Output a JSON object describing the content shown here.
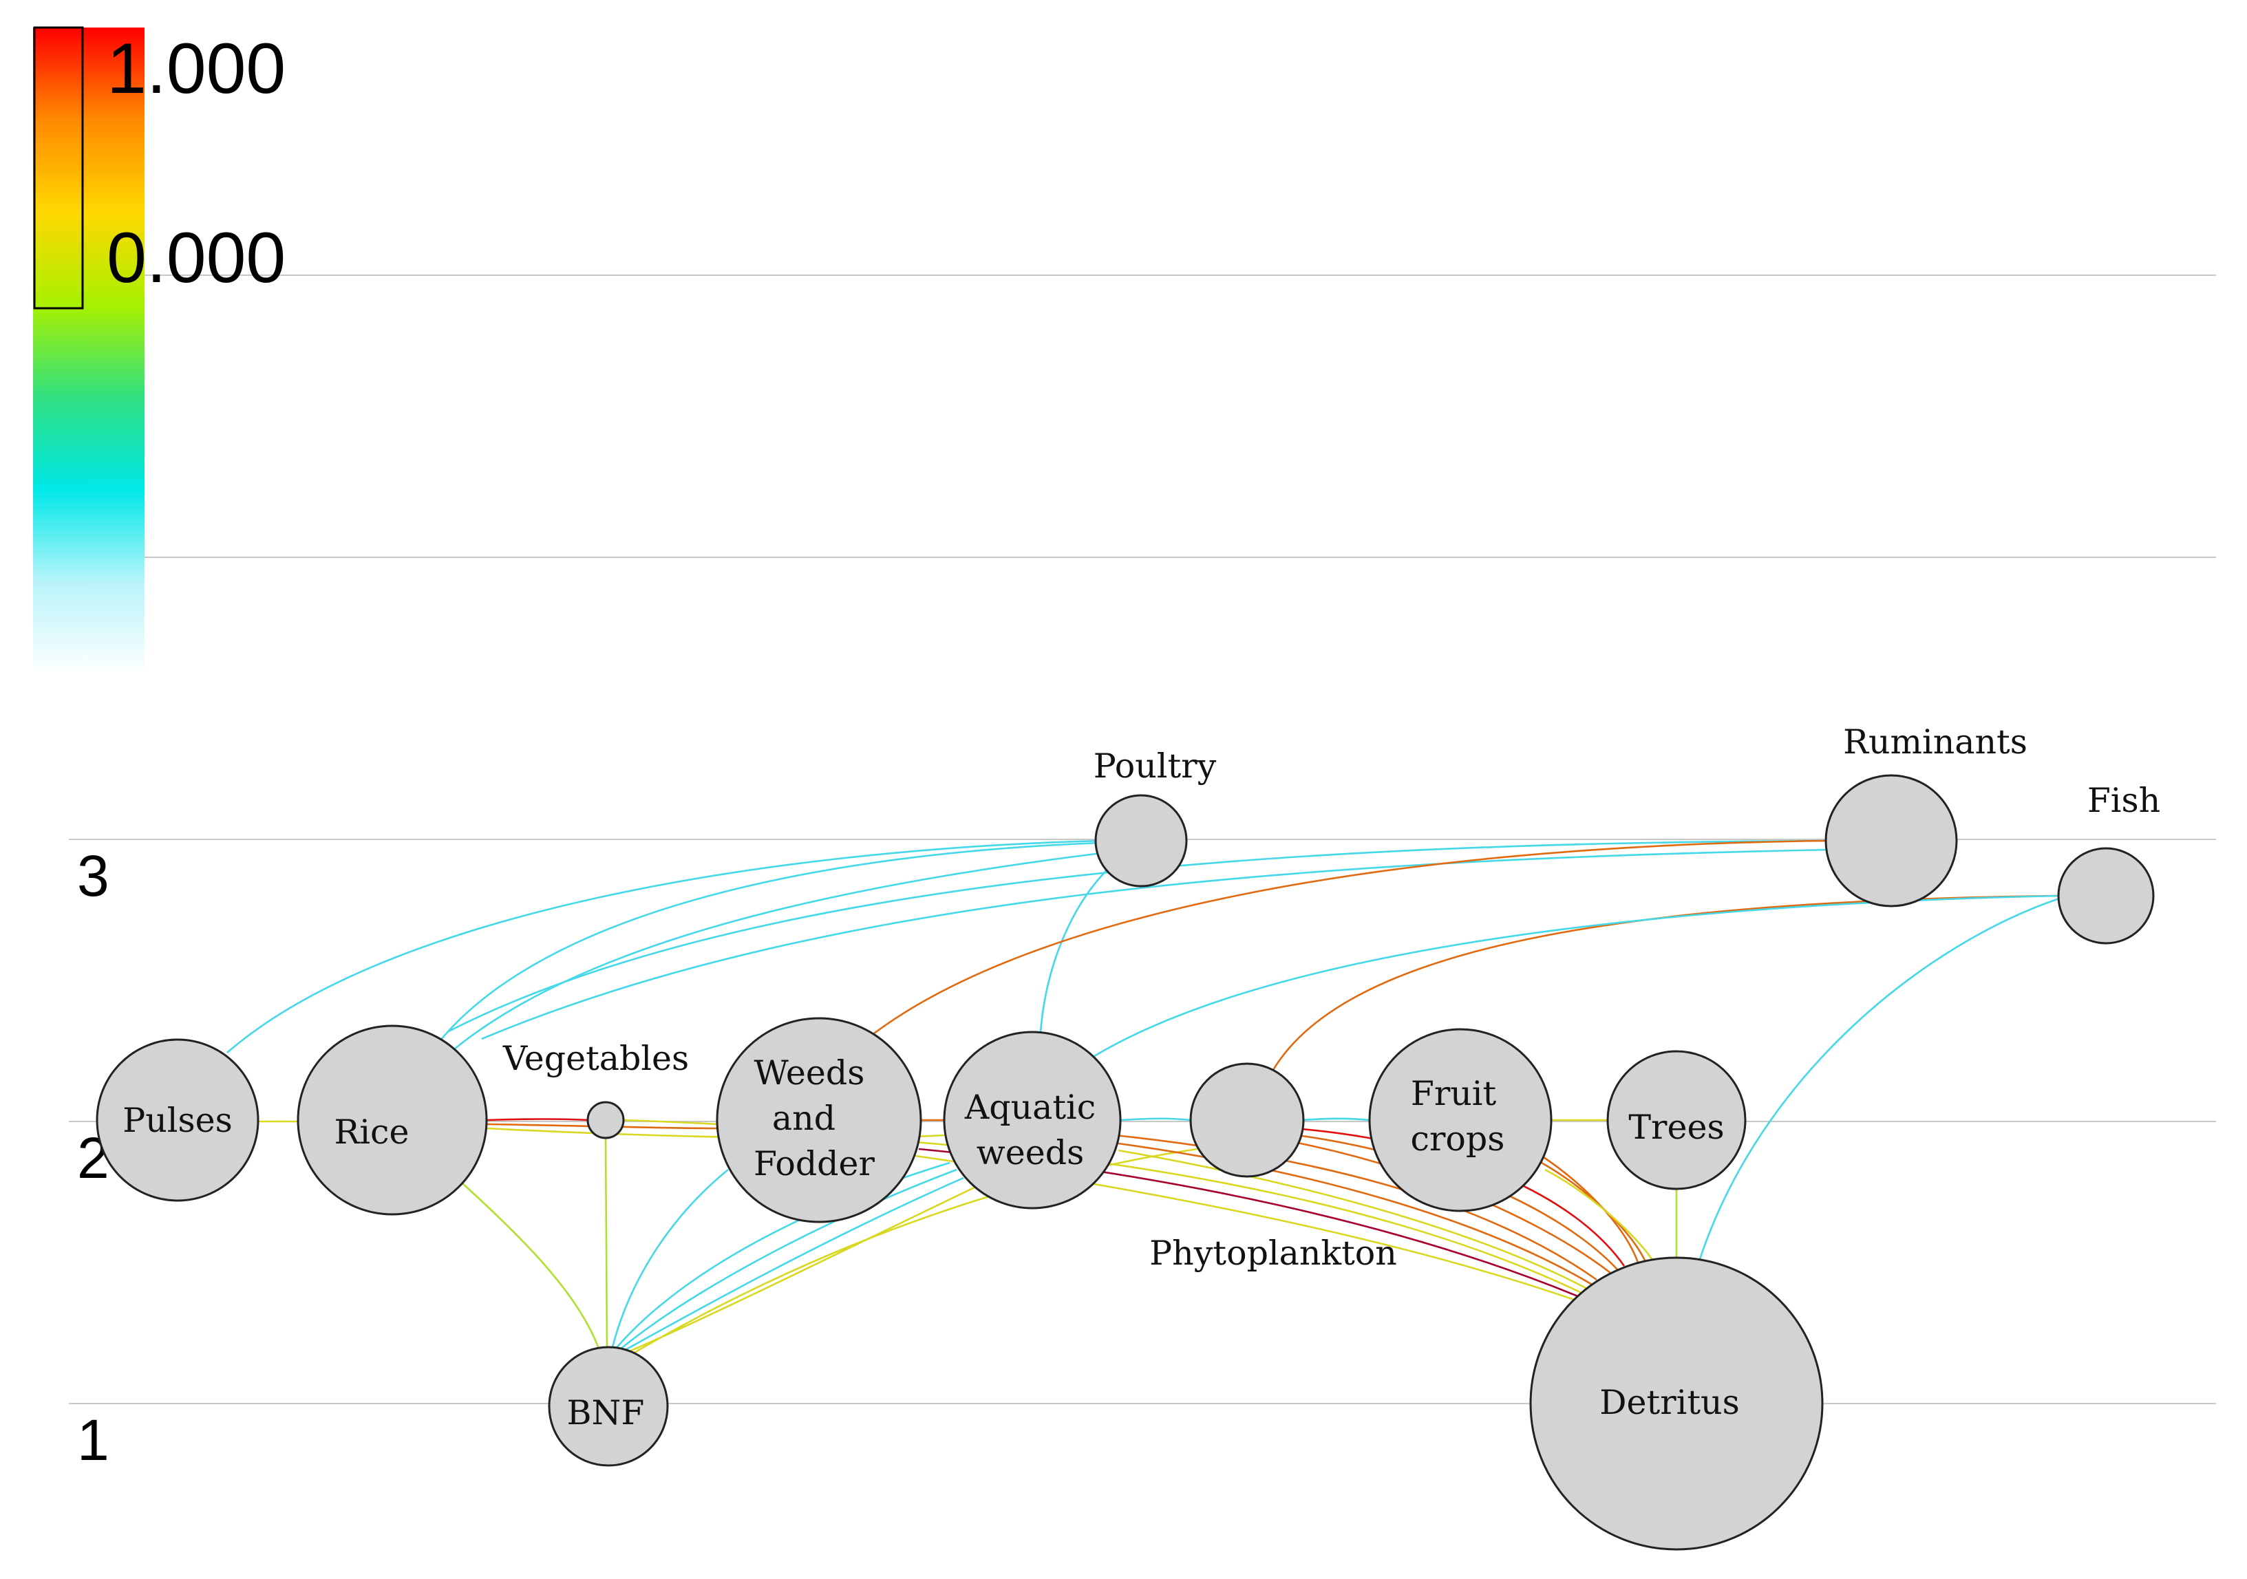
{
  "legend": {
    "max_label": "1.000",
    "min_label": "0.000",
    "gradient": [
      "#ff0000",
      "#ff8a00",
      "#ffd800",
      "#a8f000",
      "#30e080",
      "#00e8e8",
      "#b8f4fa",
      "#ffffff"
    ]
  },
  "levels": [
    {
      "id": "lvl1",
      "label": "1"
    },
    {
      "id": "lvl2",
      "label": "2"
    },
    {
      "id": "lvl3",
      "label": "3"
    }
  ],
  "nodes": [
    {
      "id": "pulses",
      "lines": [
        "Pulses"
      ]
    },
    {
      "id": "rice",
      "lines": [
        "Rice"
      ]
    },
    {
      "id": "vegetables",
      "lines": [
        "Vegetables"
      ]
    },
    {
      "id": "weeds",
      "lines": [
        "Weeds",
        "and",
        "Fodder"
      ]
    },
    {
      "id": "aquatic",
      "lines": [
        "Aquatic",
        "weeds"
      ]
    },
    {
      "id": "phyto",
      "lines": [
        "Phytoplankton"
      ]
    },
    {
      "id": "fruit",
      "lines": [
        "Fruit",
        "crops"
      ]
    },
    {
      "id": "trees",
      "lines": [
        "Trees"
      ]
    },
    {
      "id": "bnf",
      "lines": [
        "BNF"
      ]
    },
    {
      "id": "detritus",
      "lines": [
        "Detritus"
      ]
    },
    {
      "id": "poultry",
      "lines": [
        "Poultry"
      ]
    },
    {
      "id": "ruminants",
      "lines": [
        "Ruminants"
      ]
    },
    {
      "id": "fish",
      "lines": [
        "Fish"
      ]
    }
  ],
  "flow_colors": {
    "cyan": "#44d8e8",
    "yellow": "#d8d820",
    "lime": "#b0e030",
    "orange": "#e06a10",
    "red": "#e01010",
    "crimson": "#a8002c"
  }
}
